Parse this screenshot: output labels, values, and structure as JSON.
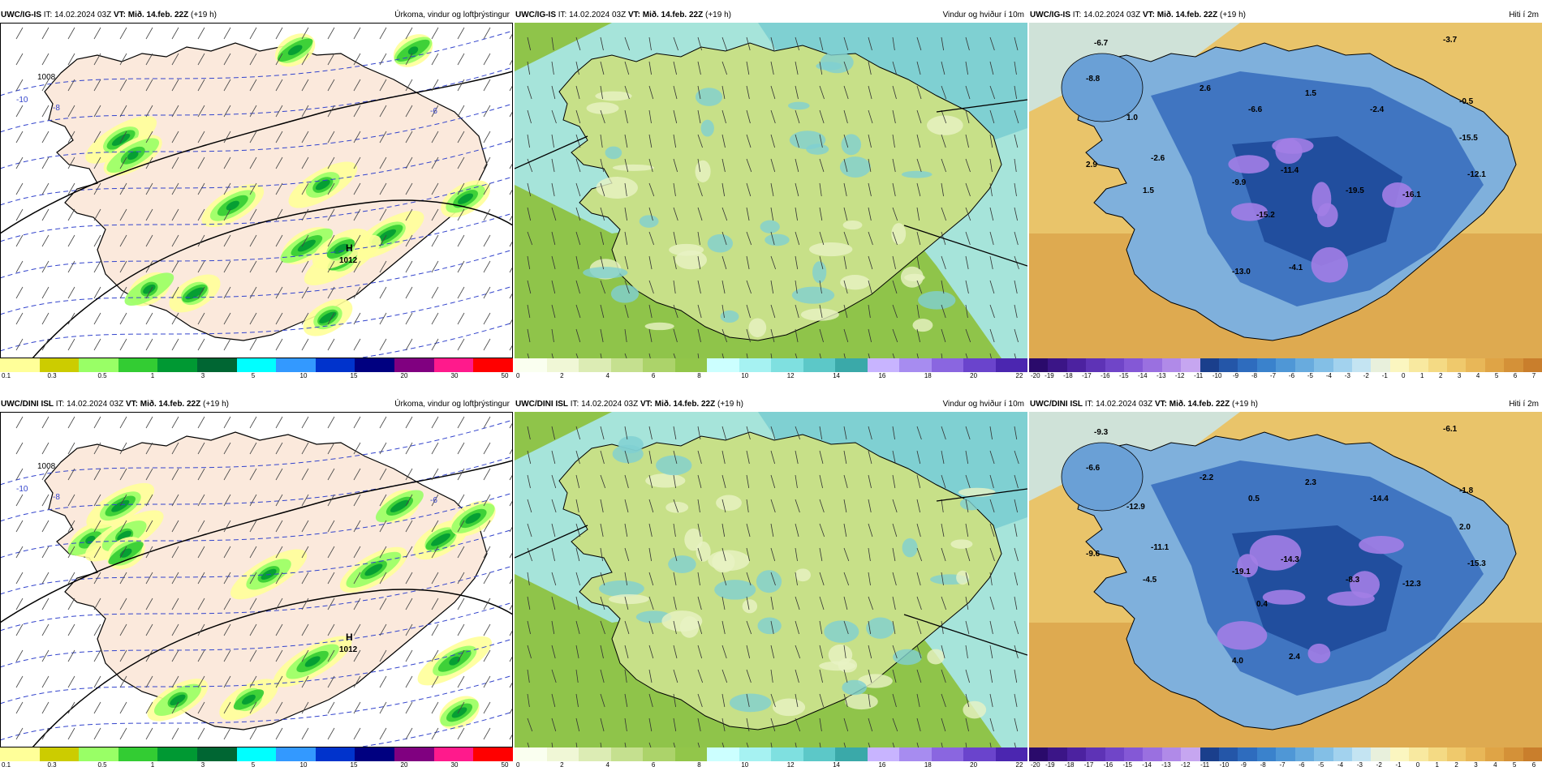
{
  "rows": [
    {
      "model": "UWC/IG-IS",
      "it_label": "IT:",
      "it_value": "14.02.2024 03Z",
      "vt_label": "VT:",
      "vt_value": "Mið. 14.feb. 22Z",
      "lead": "(+19 h)"
    },
    {
      "model": "UWC/DINI ISL",
      "it_label": "IT:",
      "it_value": "14.02.2024 03Z",
      "vt_label": "VT:",
      "vt_value": "Mið. 14.feb. 22Z",
      "lead": "(+19 h)"
    }
  ],
  "panel_titles": {
    "precip": "Úrkoma, vindur og loftþrýstingur",
    "wind": "Vindur og hviður í 10m",
    "temp": "Hiti í 2m"
  },
  "precip_scale": {
    "colors": [
      "#ffff99",
      "#cccc00",
      "#99ff66",
      "#33cc33",
      "#009933",
      "#006633",
      "#00ffff",
      "#3399ff",
      "#0033cc",
      "#000080",
      "#800080",
      "#ff1a8c",
      "#ff0000"
    ],
    "ticks": [
      "0.1",
      "0.3",
      "0.5",
      "1",
      "3",
      "5",
      "10",
      "15",
      "20",
      "30",
      "50"
    ]
  },
  "wind_scale": {
    "colors": [
      "#fafff0",
      "#f0f7d6",
      "#dcecb4",
      "#c5e08f",
      "#acd36a",
      "#92c64a",
      "#ccffff",
      "#a6f2f2",
      "#7fe0e0",
      "#5cc8c8",
      "#3aa9a9",
      "#c8b4ff",
      "#a78cf0",
      "#8a66e0",
      "#6a44cc",
      "#4b26b0"
    ],
    "ticks": [
      "0",
      "2",
      "4",
      "6",
      "8",
      "10",
      "12",
      "14",
      "16",
      "18",
      "20",
      "22"
    ]
  },
  "temp_scale": {
    "colors": [
      "#2a0a6b",
      "#3b1587",
      "#4c22a0",
      "#5e33b6",
      "#7045c8",
      "#8458d6",
      "#9a70e0",
      "#b08ae8",
      "#c6a6f0",
      "#1a3f8c",
      "#2456a8",
      "#2e6cbe",
      "#3a82cc",
      "#4f97d6",
      "#68abde",
      "#83bfe6",
      "#a2d2ee",
      "#c4e4f2",
      "#e8f0dc",
      "#fbf6c0",
      "#f8e9a0",
      "#f4da84",
      "#efc96c",
      "#e8b758",
      "#dfa446",
      "#d49138",
      "#c97e2c"
    ],
    "ticks": [
      "-20",
      "-19",
      "-18",
      "-17",
      "-16",
      "-15",
      "-14",
      "-13",
      "-12",
      "-11",
      "-10",
      "-9",
      "-8",
      "-7",
      "-6",
      "-5",
      "-4",
      "-3",
      "-2",
      "-1",
      "0",
      "1",
      "2",
      "3",
      "4",
      "5",
      "6",
      "7"
    ]
  },
  "temp_scale_row2": {
    "ticks": [
      "-20",
      "-19",
      "-18",
      "-17",
      "-16",
      "-15",
      "-14",
      "-13",
      "-12",
      "-11",
      "-10",
      "-9",
      "-8",
      "-7",
      "-6",
      "-5",
      "-4",
      "-3",
      "-2",
      "-1",
      "0",
      "1",
      "2",
      "3",
      "4",
      "5",
      "6"
    ]
  },
  "temp_labels_row1": [
    "-6.7",
    "-8.8",
    "2.6",
    "1.5",
    "-3.7",
    "-0.5",
    "-2.4",
    "-6.6",
    "1.0",
    "-2.6",
    "2.9",
    "-9.9",
    "-11.4",
    "-12.1",
    "-19.5",
    "-16.1",
    "-15.5",
    "-15.2",
    "-13.0",
    "-4.1",
    "1.5"
  ],
  "temp_labels_row2": [
    "-9.3",
    "-6.6",
    "-2.2",
    "2.3",
    "-6.1",
    "-1.8",
    "-14.4",
    "0.5",
    "-12.9",
    "-11.1",
    "-9.6",
    "-19.1",
    "-14.3",
    "-15.3",
    "-8.3",
    "-12.3",
    "2.0",
    "0.4",
    "4.0",
    "2.4",
    "-4.5"
  ],
  "precip_labels": [
    "1008",
    "1012",
    "-10",
    "-8",
    "-6",
    "H"
  ]
}
